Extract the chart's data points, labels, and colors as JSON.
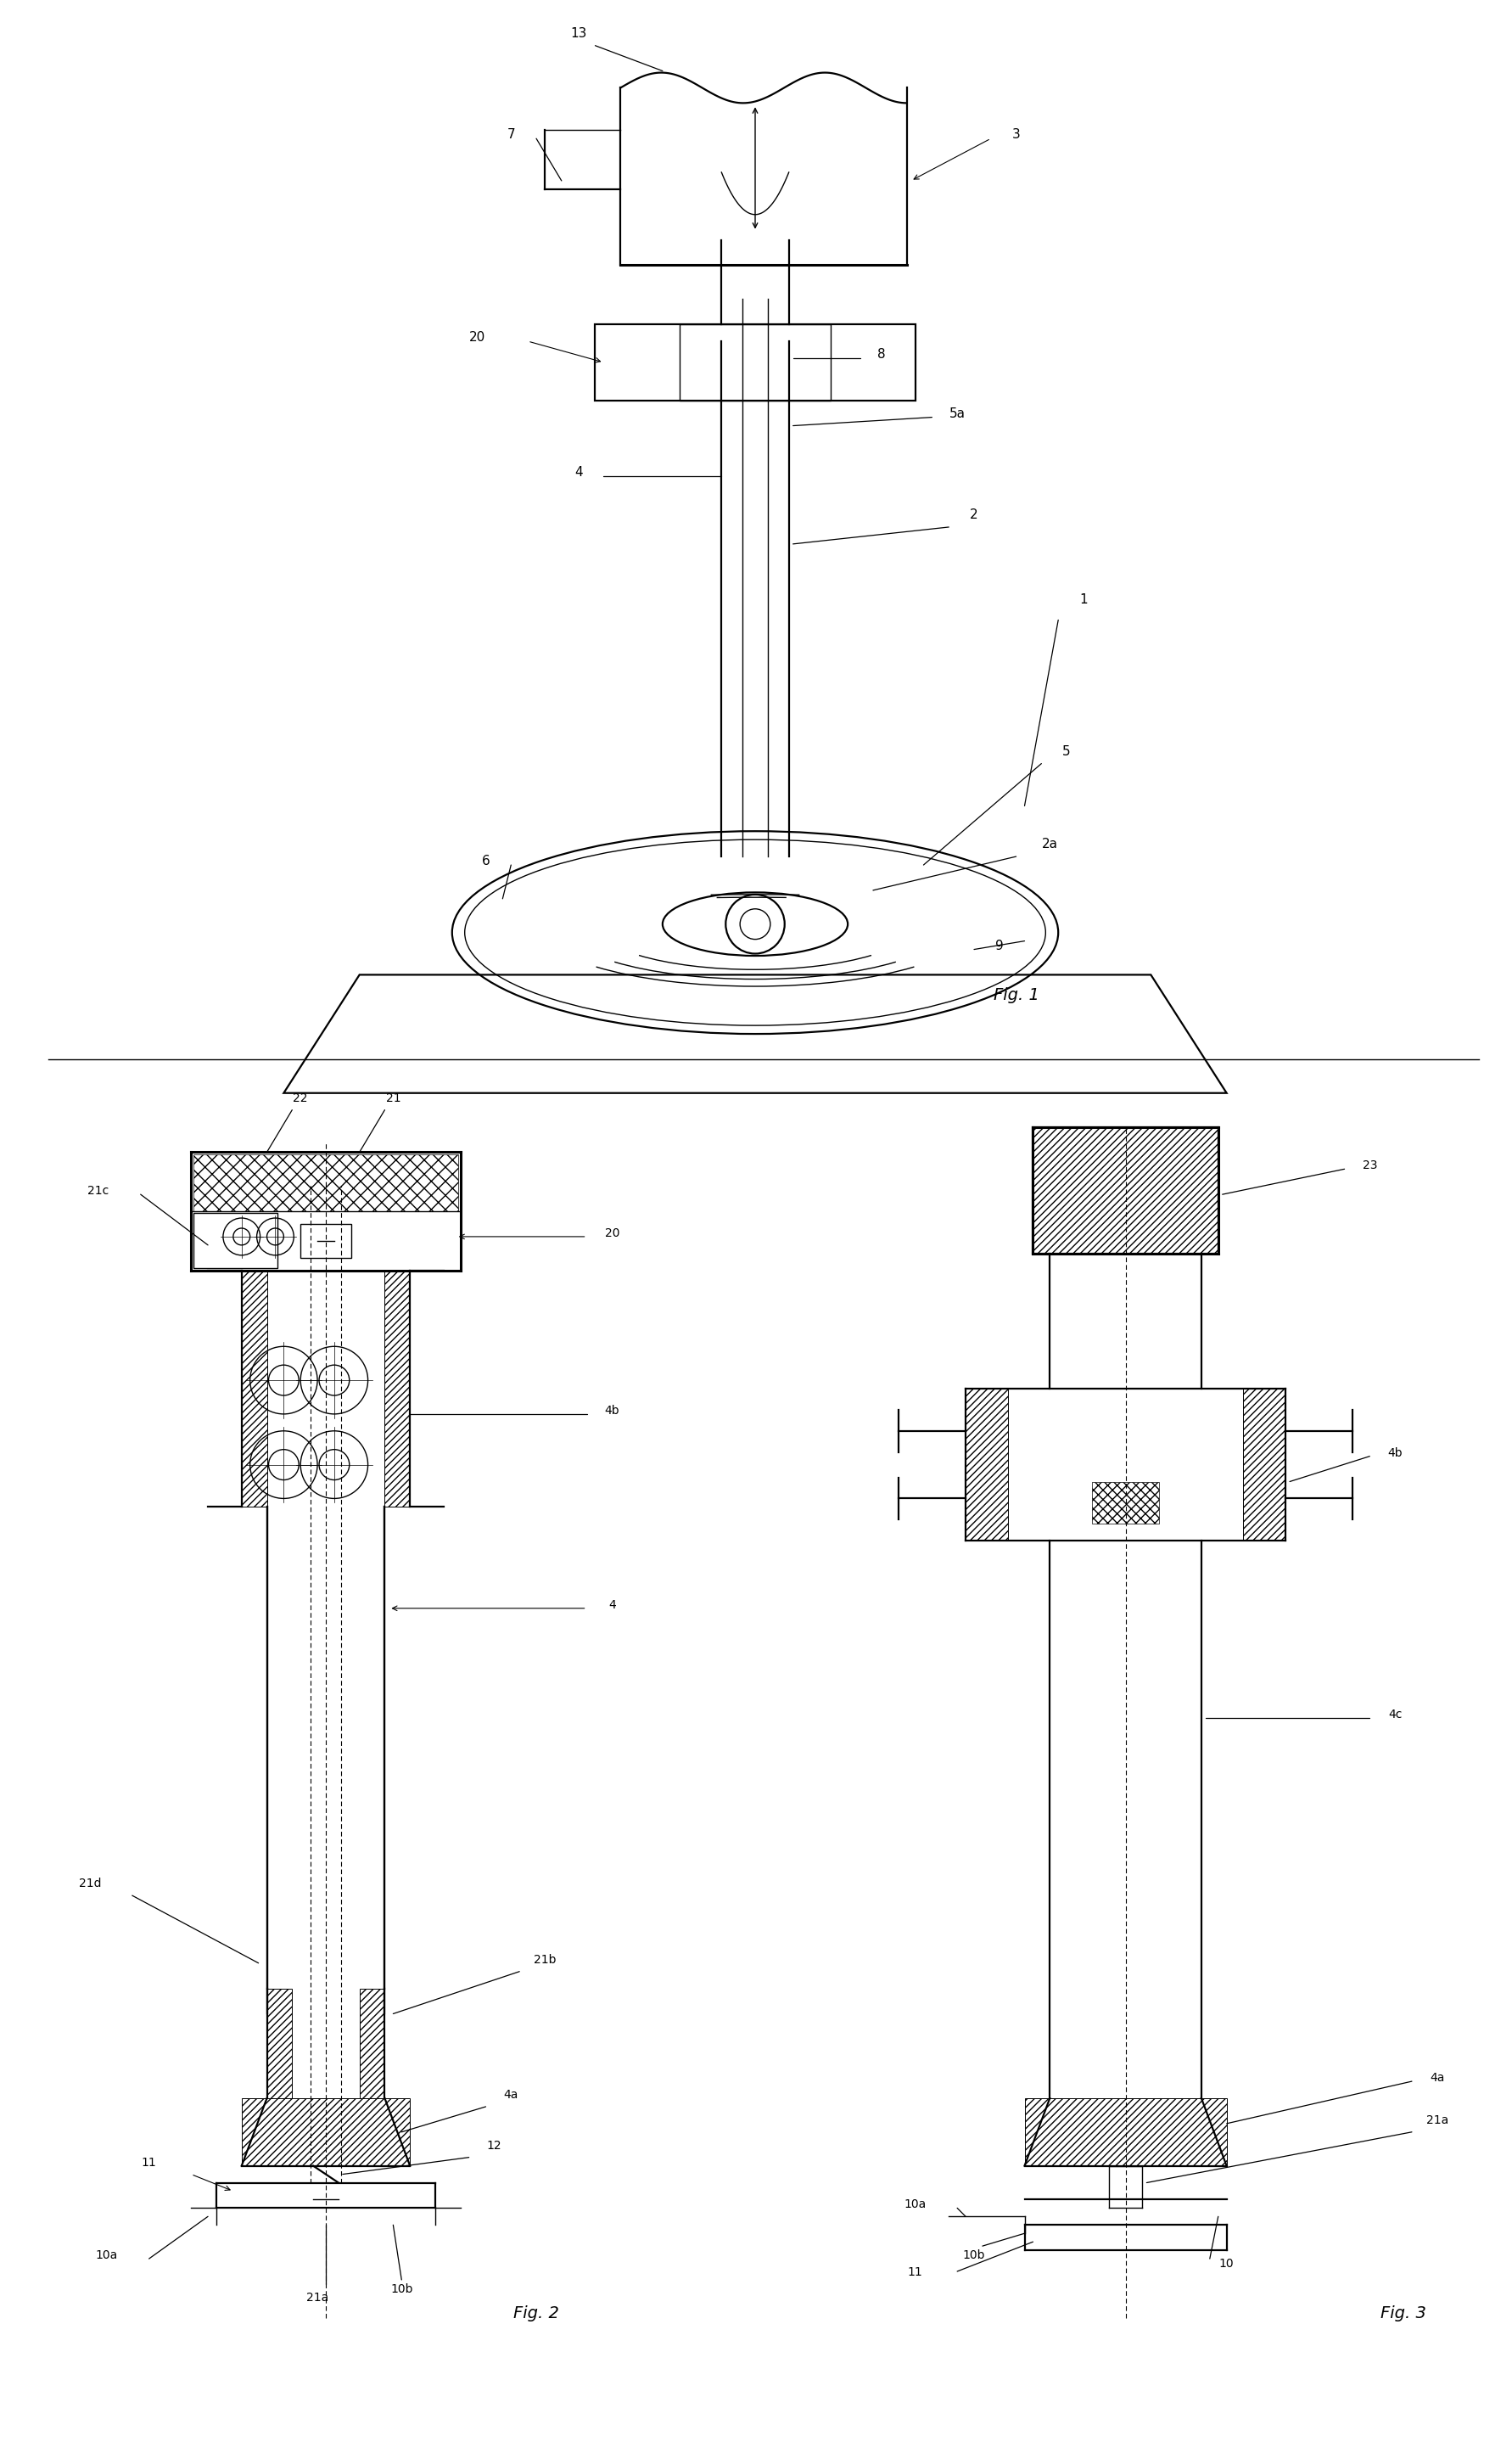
{
  "bg_color": "#ffffff",
  "line_color": "#000000",
  "fig_width": 17.83,
  "fig_height": 28.77,
  "fig1_label": "Fig. 1",
  "fig2_label": "Fig. 2",
  "fig3_label": "Fig. 3"
}
